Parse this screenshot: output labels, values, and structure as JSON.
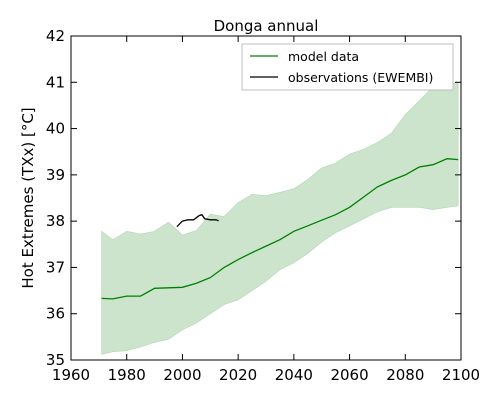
{
  "chart_data": {
    "type": "line",
    "title": "Donga annual",
    "xlabel": "",
    "ylabel": "Hot Extremes (TXx) [°C]",
    "xlim": [
      1960,
      2100
    ],
    "ylim": [
      35,
      42
    ],
    "xticks": [
      "1960",
      "1980",
      "2000",
      "2020",
      "2040",
      "2060",
      "2080",
      "2100"
    ],
    "yticks": [
      "35",
      "36",
      "37",
      "38",
      "39",
      "40",
      "41",
      "42"
    ],
    "legend_position": "top-right",
    "grid": false,
    "series": [
      {
        "name": "model data",
        "color": "#008000",
        "x": [
          1971,
          1975,
          1980,
          1985,
          1990,
          1995,
          2000,
          2005,
          2010,
          2015,
          2020,
          2025,
          2030,
          2035,
          2040,
          2045,
          2050,
          2055,
          2060,
          2065,
          2070,
          2075,
          2080,
          2085,
          2090,
          2095,
          2099
        ],
        "values": [
          36.33,
          36.32,
          36.38,
          36.38,
          36.55,
          36.56,
          36.57,
          36.66,
          36.78,
          37.0,
          37.17,
          37.32,
          37.46,
          37.6,
          37.78,
          37.9,
          38.02,
          38.14,
          38.3,
          38.52,
          38.74,
          38.88,
          39.0,
          39.17,
          39.22,
          39.35,
          39.33
        ]
      },
      {
        "name": "observations (EWEMBI)",
        "color": "#000000",
        "x": [
          1998,
          2000,
          2002,
          2004,
          2006,
          2007,
          2008,
          2010,
          2012,
          2013
        ],
        "values": [
          37.88,
          38.0,
          38.03,
          38.03,
          38.12,
          38.14,
          38.05,
          38.03,
          38.03,
          38.01
        ]
      }
    ],
    "band": {
      "color": "#cce3cc",
      "x": [
        1971,
        1975,
        1980,
        1985,
        1990,
        1995,
        2000,
        2005,
        2010,
        2015,
        2020,
        2025,
        2030,
        2035,
        2040,
        2045,
        2050,
        2055,
        2060,
        2065,
        2070,
        2075,
        2080,
        2085,
        2090,
        2095,
        2099
      ],
      "upper": [
        37.78,
        37.6,
        37.78,
        37.72,
        37.78,
        37.98,
        37.7,
        37.8,
        38.15,
        38.1,
        38.4,
        38.58,
        38.55,
        38.62,
        38.7,
        38.9,
        39.15,
        39.25,
        39.45,
        39.55,
        39.7,
        39.9,
        40.3,
        40.6,
        40.9,
        40.95,
        41.0
      ],
      "lower": [
        35.12,
        35.18,
        35.2,
        35.28,
        35.38,
        35.45,
        35.65,
        35.8,
        36.0,
        36.2,
        36.3,
        36.5,
        36.7,
        36.95,
        37.1,
        37.3,
        37.55,
        37.75,
        37.9,
        38.05,
        38.2,
        38.3,
        38.3,
        38.3,
        38.25,
        38.3,
        38.33
      ]
    }
  }
}
